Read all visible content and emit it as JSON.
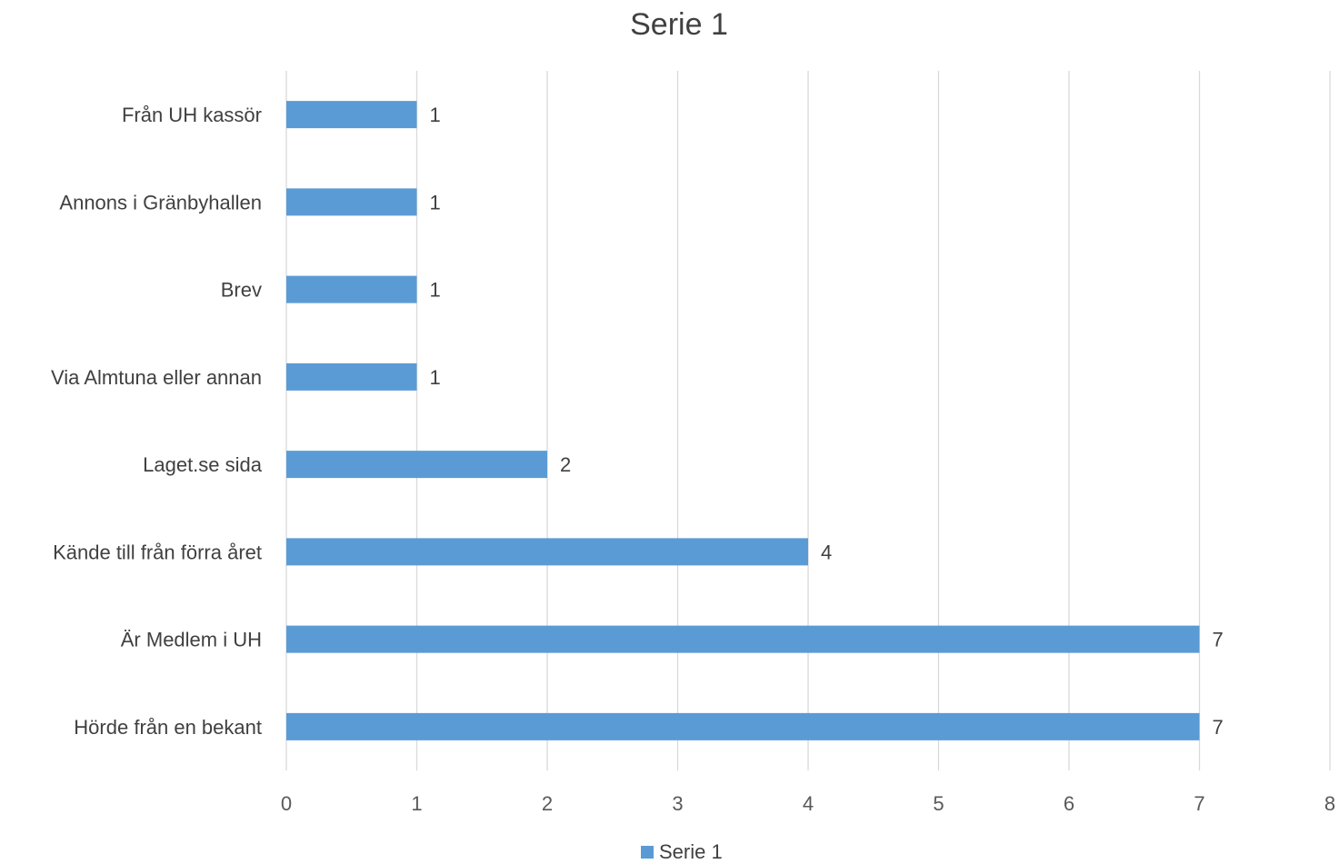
{
  "chart_data": {
    "type": "bar",
    "orientation": "horizontal",
    "title": "Serie 1",
    "categories": [
      "Från UH kassör",
      "Annons i Gränbyhallen",
      "Brev",
      "Via Almtuna eller annan",
      "Laget.se sida",
      "Kände till från förra året",
      "Är Medlem i UH",
      "Hörde från en bekant"
    ],
    "series": [
      {
        "name": "Serie 1",
        "values": [
          1,
          1,
          1,
          1,
          2,
          4,
          7,
          7
        ],
        "color": "#5b9bd5"
      }
    ],
    "xlim": [
      0,
      8
    ],
    "x_ticks": [
      "0",
      "1",
      "2",
      "3",
      "4",
      "5",
      "6",
      "7",
      "8"
    ],
    "grid": "vertical",
    "data_labels": true,
    "legend": "bottom"
  }
}
